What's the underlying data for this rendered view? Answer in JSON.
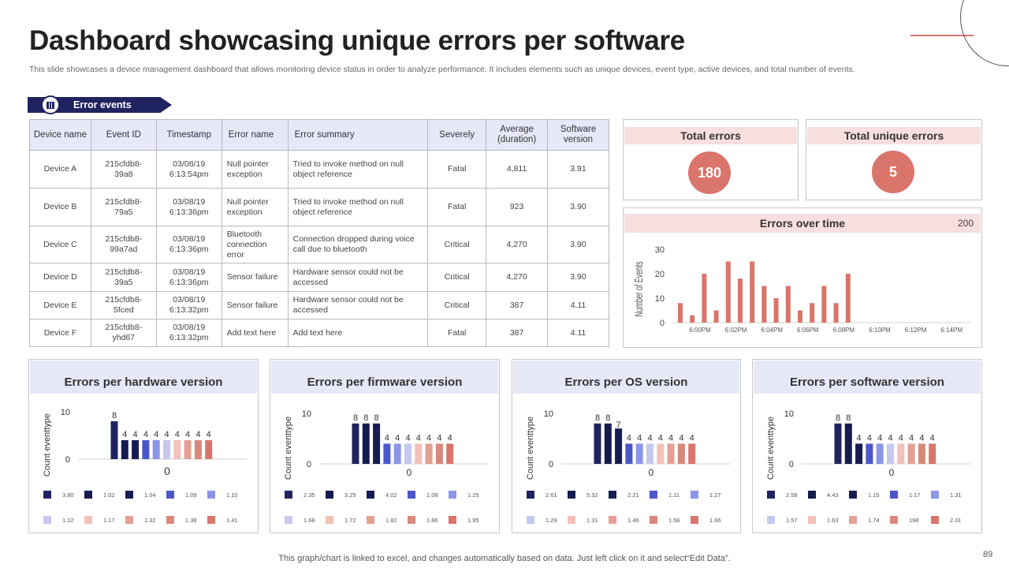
{
  "title": "Dashboard showcasing unique errors per software",
  "subtitle": "This slide showcases a device management dashboard that allows monitoring device status in order to analyze performance. It includes elements such as unique devices, event type,  active devices, and total number of events.",
  "section_label": "Error events",
  "table": {
    "headers": [
      "Device name",
      "Event ID",
      "Timestamp",
      "Error name",
      "Error summary",
      "Severely",
      "Average (duration)",
      "Software version"
    ],
    "rows": [
      [
        "Device A",
        "215cfdb8-39a8",
        "03/08/19 6:13:54pm",
        "Null pointer exception",
        "Tried to invoke method on null object reference",
        "Fatal",
        "4,811",
        "3.91"
      ],
      [
        "Device B",
        "215cfdb8-79a5",
        "03/08/19 6:13:36pm",
        "Null pointer exception",
        "Tried to invoke method on null object reference",
        "Fatal",
        "923",
        "3.90"
      ],
      [
        "Device C",
        "215cfdb8-99a7ad",
        "03/08/19 6:13:36pm",
        "Bluetooth connection error",
        "Connection dropped during voice call due to bluetooth",
        "Critical",
        "4,270",
        "3.90"
      ],
      [
        "Device D",
        "215cfdb8-39a5",
        "03/08/19 6:13:36pm",
        "Sensor failure",
        "Hardware sensor could not be accessed",
        "Critical",
        "4,270",
        "3.90"
      ],
      [
        "Device E",
        "215cfdb8-5fced",
        "03/08/19 6:13:32pm",
        "Sensor failure",
        "Hardware sensor could not be accessed",
        "Critical",
        "387",
        "4.11"
      ],
      [
        "Device F",
        "215cfdb8-yhd67",
        "03/08/19 6:13:32pm",
        "Add text here",
        "Add text here",
        "Fatal",
        "387",
        "4.11"
      ]
    ]
  },
  "kpis": {
    "total_errors_label": "Total errors",
    "total_errors": "180",
    "unique_errors_label": "Total unique errors",
    "unique_errors": "5"
  },
  "colors": {
    "accent": "#d9756b",
    "navy": "#1f2460",
    "header_pink": "#f7dfdf",
    "header_lavender": "#e6e8f8",
    "bar_palette": [
      "#1f2460",
      "#151a4f",
      "#171c52",
      "#4b57c9",
      "#8b96e6",
      "#c5c9ef",
      "#f2c1b9",
      "#e3a093",
      "#d9887c",
      "#d9756b"
    ]
  },
  "footer": "This graph/chart is linked to excel,  and changes automatically based on data. Just left click on it and select“Edit Data”.",
  "page_number": "89",
  "chart_data": [
    {
      "type": "bar",
      "title": "Errors over time",
      "corner_label": "200",
      "ylabel": "Number of Events",
      "ylim": [
        0,
        30
      ],
      "yticks": [
        0,
        10,
        20,
        30
      ],
      "xtick_labels": [
        "6:00PM",
        "6:02PM",
        "6:04PM",
        "6:06PM",
        "6:08PM",
        "6:10PM",
        "6:12PM",
        "6:14PM"
      ],
      "values": [
        8,
        3,
        20,
        5,
        25,
        18,
        25,
        15,
        10,
        15,
        5,
        8,
        15,
        8,
        20
      ],
      "color": "#d9756b"
    },
    {
      "type": "bar",
      "title": "Errors per hardware version",
      "ylabel": "Count eventtype",
      "xlabel": "0",
      "ylim": [
        0,
        10
      ],
      "yticks": [
        0,
        10
      ],
      "categories": [
        "3.80",
        "1.02",
        "1.04",
        "1.09",
        "1.10",
        "1.12",
        "1.17",
        "1.32",
        "1.38",
        "1.41"
      ],
      "values": [
        8,
        4,
        4,
        4,
        4,
        4,
        4,
        4,
        4,
        4
      ],
      "data_labels": [
        "8",
        "4",
        "4",
        "4",
        "4",
        "4",
        "4",
        "4",
        "4",
        "4"
      ]
    },
    {
      "type": "bar",
      "title": "Errors per firmware version",
      "ylabel": "Count eventtype",
      "xlabel": "0",
      "ylim": [
        0,
        10
      ],
      "yticks": [
        0,
        10
      ],
      "categories": [
        "2.35",
        "3.25",
        "4.02",
        "1.08",
        "1.25",
        "1.68",
        "1.72",
        "1.82",
        "1.86",
        "1.95"
      ],
      "values": [
        8,
        8,
        8,
        4,
        4,
        4,
        4,
        4,
        4,
        4
      ],
      "data_labels": [
        "8",
        "8",
        "8",
        "4",
        "4",
        "4",
        "4",
        "4",
        "4",
        "4"
      ]
    },
    {
      "type": "bar",
      "title": "Errors per OS version",
      "ylabel": "Count eventtype",
      "xlabel": "0",
      "ylim": [
        0,
        10
      ],
      "yticks": [
        0,
        10
      ],
      "categories": [
        "2.61",
        "5.32",
        "2.21",
        "1.11",
        "1.27",
        "1.29",
        "1.31",
        "1.46",
        "1.56",
        "1.66"
      ],
      "values": [
        8,
        8,
        7,
        4,
        4,
        4,
        4,
        4,
        4,
        4
      ],
      "data_labels": [
        "8",
        "8",
        "7",
        "4",
        "4",
        "4",
        "4",
        "4",
        "4",
        "4"
      ]
    },
    {
      "type": "bar",
      "title": "Errors per software version",
      "ylabel": "Count eventtype",
      "xlabel": "0",
      "ylim": [
        0,
        10
      ],
      "yticks": [
        0,
        10
      ],
      "categories": [
        "2.58",
        "4.43",
        "1.15",
        "1.17",
        "1.31",
        "1.57",
        "1.63",
        "1.74",
        "198",
        "2.01"
      ],
      "values": [
        8,
        8,
        4,
        4,
        4,
        4,
        4,
        4,
        4,
        4
      ],
      "data_labels": [
        "8",
        "8",
        "4",
        "4",
        "4",
        "4",
        "4",
        "4",
        "4",
        "4"
      ]
    }
  ]
}
